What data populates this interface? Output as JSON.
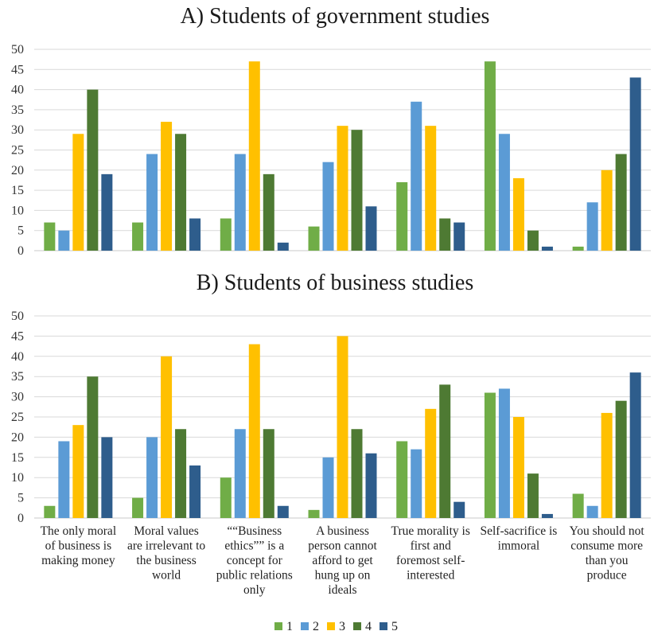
{
  "colors": {
    "s1": "#70ad47",
    "s2": "#5b9bd5",
    "s3": "#ffc000",
    "s4": "#4e7a33",
    "s5": "#2e5d8c"
  },
  "legend": [
    "1",
    "2",
    "3",
    "4",
    "5"
  ],
  "chart_data": [
    {
      "type": "bar",
      "title": "A) Students of government studies",
      "ylim": [
        0,
        50
      ],
      "yticks": [
        0,
        5,
        10,
        15,
        20,
        25,
        30,
        35,
        40,
        45,
        50
      ],
      "grid": true,
      "legend_position": "bottom",
      "categories": [
        "The only moral of business is making money",
        "Moral values are irrelevant to the business world",
        "““Business ethics”” is a concept for public relations only",
        "A business person cannot afford to get hung up on ideals",
        "True morality is first and foremost self-interested",
        "Self-sacrifice is immoral",
        "You should not consume more than you produce"
      ],
      "series": [
        {
          "name": "1",
          "values": [
            7,
            7,
            8,
            6,
            17,
            47,
            1
          ]
        },
        {
          "name": "2",
          "values": [
            5,
            24,
            24,
            22,
            37,
            29,
            12
          ]
        },
        {
          "name": "3",
          "values": [
            29,
            32,
            47,
            31,
            31,
            18,
            20
          ]
        },
        {
          "name": "4",
          "values": [
            40,
            29,
            19,
            30,
            8,
            5,
            24
          ]
        },
        {
          "name": "5",
          "values": [
            19,
            8,
            2,
            11,
            7,
            1,
            43
          ]
        }
      ]
    },
    {
      "type": "bar",
      "title": "B) Students of business studies",
      "ylim": [
        0,
        50
      ],
      "yticks": [
        0,
        5,
        10,
        15,
        20,
        25,
        30,
        35,
        40,
        45,
        50
      ],
      "grid": true,
      "legend_position": "bottom",
      "categories": [
        "The only moral of business is making money",
        "Moral values are irrelevant to the business world",
        "““Business ethics”” is a concept for public relations only",
        "A business person cannot afford to get hung up on ideals",
        "True morality is first and foremost self-interested",
        "Self-sacrifice is immoral",
        "You should not consume more than you produce"
      ],
      "category_label_lines": [
        [
          "The only moral",
          "of business is",
          "making money"
        ],
        [
          "Moral values",
          "are irrelevant to",
          "the business",
          "world"
        ],
        [
          "““Business",
          "ethics”” is a",
          "concept for",
          "public relations",
          "only"
        ],
        [
          "A business",
          "person cannot",
          "afford to get",
          "hung up on",
          "ideals"
        ],
        [
          "True morality is",
          "first and",
          "foremost self-",
          "interested"
        ],
        [
          "Self-sacrifice is",
          "immoral"
        ],
        [
          "You should not",
          "consume more",
          "than you",
          "produce"
        ]
      ],
      "series": [
        {
          "name": "1",
          "values": [
            3,
            5,
            10,
            2,
            19,
            31,
            6
          ]
        },
        {
          "name": "2",
          "values": [
            19,
            20,
            22,
            15,
            17,
            32,
            3
          ]
        },
        {
          "name": "3",
          "values": [
            23,
            40,
            43,
            45,
            27,
            25,
            26
          ]
        },
        {
          "name": "4",
          "values": [
            35,
            22,
            22,
            22,
            33,
            11,
            29
          ]
        },
        {
          "name": "5",
          "values": [
            20,
            13,
            3,
            16,
            4,
            1,
            36
          ]
        }
      ]
    }
  ]
}
